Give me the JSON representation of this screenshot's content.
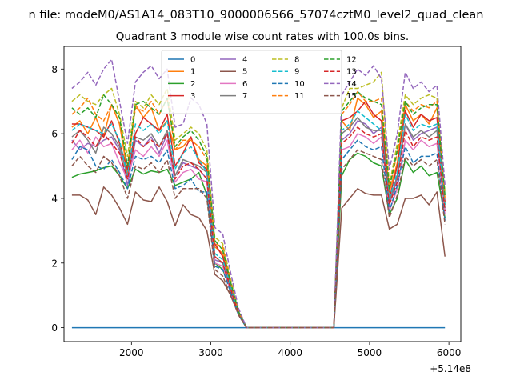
{
  "suptitle": "n file: modeM0/AS1A14_083T10_9000006566_57074cztM0_level2_quad_clean",
  "chart_data": {
    "type": "line",
    "title": "Quadrant 3 module wise count rates with 100.0s bins.",
    "xlabel": "",
    "ylabel": "",
    "x_offset_label": "+5.14e8",
    "xlim": [
      1150,
      6150
    ],
    "ylim": [
      -0.43,
      8.7
    ],
    "xticks": [
      2000,
      3000,
      4000,
      5000,
      6000
    ],
    "yticks": [
      0,
      2,
      4,
      6,
      8
    ],
    "grid": false,
    "legend_position": "top-center",
    "x": [
      1250,
      1350,
      1450,
      1550,
      1650,
      1750,
      1850,
      1950,
      2050,
      2150,
      2250,
      2350,
      2450,
      2550,
      2650,
      2750,
      2850,
      2950,
      3050,
      3150,
      3250,
      3350,
      3450,
      3550,
      3650,
      3750,
      3850,
      3950,
      4050,
      4150,
      4250,
      4350,
      4450,
      4550,
      4650,
      4750,
      4850,
      4950,
      5050,
      5150,
      5250,
      5350,
      5450,
      5550,
      5650,
      5750,
      5850,
      5950
    ],
    "series": [
      {
        "name": "0",
        "color": "#1f77b4",
        "dash": false,
        "values": [
          0,
          0,
          0,
          0,
          0,
          0,
          0,
          0,
          0,
          0,
          0,
          0,
          0,
          0,
          0,
          0,
          0,
          0,
          0,
          0,
          0,
          0,
          0,
          0,
          0,
          0,
          0,
          0,
          0,
          0,
          0,
          0,
          0,
          0,
          0,
          0,
          0,
          0,
          0,
          0,
          0,
          0,
          0,
          0,
          0,
          0,
          0,
          0
        ]
      },
      {
        "name": "1",
        "color": "#ff7f0e",
        "dash": false,
        "values": [
          6.2,
          6.4,
          6.0,
          6.5,
          5.9,
          6.9,
          6.3,
          4.8,
          6.9,
          6.5,
          6.8,
          6.1,
          6.4,
          5.5,
          5.6,
          5.9,
          5.2,
          5.0,
          2.5,
          2.3,
          1.4,
          0.5,
          0,
          0,
          0,
          0,
          0,
          0,
          0,
          0,
          0,
          0,
          0,
          0,
          6.4,
          6.1,
          7.1,
          6.9,
          6.5,
          6.7,
          4.2,
          5.1,
          6.9,
          6.4,
          6.6,
          6.3,
          6.8,
          3.8
        ]
      },
      {
        "name": "2",
        "color": "#2ca02c",
        "dash": false,
        "values": [
          4.65,
          4.75,
          4.8,
          4.85,
          4.95,
          5.0,
          4.7,
          4.3,
          4.9,
          4.75,
          4.85,
          4.8,
          4.9,
          4.4,
          4.5,
          4.6,
          4.8,
          4.1,
          2.0,
          1.8,
          1.2,
          0.4,
          0,
          0,
          0,
          0,
          0,
          0,
          0,
          0,
          0,
          0,
          0,
          0,
          4.7,
          5.2,
          5.4,
          5.3,
          5.1,
          5.0,
          3.5,
          4.0,
          5.2,
          4.8,
          5.0,
          4.7,
          4.8,
          3.4
        ]
      },
      {
        "name": "3",
        "color": "#d62728",
        "dash": false,
        "values": [
          6.3,
          6.3,
          6.2,
          6.1,
          5.9,
          6.4,
          5.7,
          4.9,
          6.0,
          6.5,
          6.3,
          6.1,
          6.6,
          5.0,
          5.4,
          5.9,
          5.1,
          4.9,
          2.6,
          2.2,
          1.3,
          0.5,
          0,
          0,
          0,
          0,
          0,
          0,
          0,
          0,
          0,
          0,
          0,
          0,
          6.4,
          6.5,
          6.7,
          7.0,
          6.6,
          6.4,
          4.0,
          5.0,
          6.7,
          6.2,
          6.6,
          6.4,
          6.5,
          3.9
        ]
      },
      {
        "name": "4",
        "color": "#9467bd",
        "dash": false,
        "values": [
          5.8,
          5.5,
          5.7,
          5.6,
          5.8,
          5.9,
          5.5,
          4.4,
          5.8,
          5.6,
          5.9,
          5.4,
          6.0,
          4.7,
          5.1,
          5.0,
          4.9,
          4.6,
          2.1,
          2.0,
          1.2,
          0.4,
          0,
          0,
          0,
          0,
          0,
          0,
          0,
          0,
          0,
          0,
          0,
          0,
          5.8,
          6.0,
          6.4,
          6.3,
          6.0,
          6.2,
          3.8,
          4.6,
          6.3,
          5.8,
          6.0,
          6.1,
          6.2,
          3.6
        ]
      },
      {
        "name": "5",
        "color": "#8c564b",
        "dash": false,
        "values": [
          4.1,
          4.1,
          3.95,
          3.5,
          4.35,
          4.1,
          3.7,
          3.2,
          4.2,
          3.95,
          3.9,
          4.35,
          3.9,
          3.15,
          3.8,
          3.5,
          3.4,
          3.0,
          1.65,
          1.45,
          1.0,
          0.4,
          0,
          0,
          0,
          0,
          0,
          0,
          0,
          0,
          0,
          0,
          0,
          0,
          3.7,
          4.0,
          4.3,
          4.15,
          4.1,
          4.1,
          3.05,
          3.2,
          4.0,
          4.0,
          4.1,
          3.8,
          4.2,
          2.2
        ]
      },
      {
        "name": "6",
        "color": "#e377c2",
        "dash": false,
        "values": [
          5.5,
          5.8,
          5.4,
          5.9,
          5.6,
          5.7,
          5.1,
          4.6,
          5.5,
          5.3,
          5.6,
          5.3,
          5.8,
          4.5,
          4.8,
          4.9,
          4.6,
          4.5,
          2.0,
          1.9,
          1.1,
          0.4,
          0,
          0,
          0,
          0,
          0,
          0,
          0,
          0,
          0,
          0,
          0,
          0,
          5.5,
          5.6,
          6.0,
          5.9,
          5.7,
          5.9,
          3.6,
          4.3,
          5.8,
          5.5,
          5.8,
          5.6,
          5.7,
          3.5
        ]
      },
      {
        "name": "7",
        "color": "#7f7f7f",
        "dash": false,
        "values": [
          5.9,
          6.1,
          5.8,
          5.4,
          6.2,
          6.0,
          5.6,
          4.7,
          5.9,
          5.8,
          6.0,
          5.6,
          6.1,
          4.7,
          5.2,
          5.1,
          5.0,
          4.8,
          2.2,
          2.0,
          1.2,
          0.4,
          0,
          0,
          0,
          0,
          0,
          0,
          0,
          0,
          0,
          0,
          0,
          0,
          6.0,
          6.2,
          6.5,
          6.2,
          6.1,
          6.1,
          3.9,
          4.7,
          6.3,
          5.9,
          6.1,
          5.9,
          6.1,
          3.7
        ]
      },
      {
        "name": "8",
        "color": "#bcbd22",
        "dash": true,
        "values": [
          7.0,
          7.2,
          7.0,
          6.9,
          7.2,
          7.4,
          6.6,
          5.3,
          7.0,
          6.8,
          7.2,
          6.9,
          7.4,
          5.8,
          6.0,
          6.2,
          6.0,
          5.5,
          2.8,
          2.6,
          1.5,
          0.5,
          0,
          0,
          0,
          0,
          0,
          0,
          0,
          0,
          0,
          0,
          0,
          0,
          6.8,
          7.4,
          7.4,
          7.5,
          7.6,
          7.9,
          4.4,
          5.7,
          7.2,
          6.9,
          7.1,
          7.2,
          7.1,
          4.2
        ]
      },
      {
        "name": "9",
        "color": "#17becf",
        "dash": true,
        "values": [
          6.1,
          6.3,
          6.2,
          6.1,
          6.0,
          6.3,
          5.8,
          4.7,
          6.3,
          6.1,
          6.3,
          6.0,
          6.4,
          4.9,
          5.4,
          5.6,
          5.2,
          4.8,
          2.3,
          2.1,
          1.3,
          0.4,
          0,
          0,
          0,
          0,
          0,
          0,
          0,
          0,
          0,
          0,
          0,
          0,
          6.1,
          6.3,
          6.7,
          6.5,
          6.3,
          6.1,
          4.0,
          4.8,
          6.6,
          6.1,
          6.3,
          6.2,
          6.3,
          3.8
        ]
      },
      {
        "name": "10",
        "color": "#1f77b4",
        "dash": true,
        "values": [
          5.2,
          5.6,
          5.5,
          5.0,
          4.9,
          5.2,
          4.8,
          4.3,
          5.3,
          5.2,
          5.3,
          5.1,
          5.5,
          4.3,
          4.4,
          4.6,
          4.2,
          4.2,
          1.9,
          1.8,
          1.1,
          0.4,
          0,
          0,
          0,
          0,
          0,
          0,
          0,
          0,
          0,
          0,
          0,
          0,
          5.2,
          5.5,
          5.8,
          5.6,
          5.5,
          5.6,
          3.6,
          4.4,
          5.6,
          5.1,
          5.3,
          5.3,
          5.4,
          3.3
        ]
      },
      {
        "name": "11",
        "color": "#ff7f0e",
        "dash": true,
        "values": [
          6.6,
          6.8,
          7.1,
          6.6,
          6.4,
          6.9,
          6.3,
          5.0,
          6.8,
          6.7,
          7.0,
          6.6,
          7.1,
          5.5,
          5.8,
          5.8,
          5.6,
          5.2,
          2.6,
          2.5,
          1.4,
          0.5,
          0,
          0,
          0,
          0,
          0,
          0,
          0,
          0,
          0,
          0,
          0,
          0,
          6.6,
          6.9,
          7.3,
          7.0,
          7.0,
          7.1,
          4.3,
          5.4,
          7.0,
          6.7,
          6.9,
          6.8,
          7.0,
          4.0
        ]
      },
      {
        "name": "12",
        "color": "#2ca02c",
        "dash": true,
        "values": [
          6.8,
          6.6,
          6.8,
          6.5,
          7.2,
          6.9,
          6.5,
          5.0,
          6.9,
          7.0,
          6.8,
          6.6,
          7.1,
          5.6,
          5.9,
          6.1,
          5.8,
          5.3,
          2.7,
          2.4,
          1.4,
          0.5,
          0,
          0,
          0,
          0,
          0,
          0,
          0,
          0,
          0,
          0,
          0,
          0,
          6.7,
          7.0,
          7.3,
          7.1,
          7.0,
          6.9,
          4.3,
          5.5,
          7.0,
          6.6,
          6.8,
          6.9,
          6.9,
          4.1
        ]
      },
      {
        "name": "13",
        "color": "#d62728",
        "dash": true,
        "values": [
          5.7,
          6.1,
          5.9,
          5.6,
          6.0,
          5.7,
          5.4,
          4.6,
          5.9,
          5.6,
          5.8,
          5.6,
          6.0,
          4.6,
          5.0,
          5.1,
          4.9,
          4.6,
          2.2,
          2.0,
          1.2,
          0.4,
          0,
          0,
          0,
          0,
          0,
          0,
          0,
          0,
          0,
          0,
          0,
          0,
          5.7,
          5.9,
          6.2,
          6.0,
          5.9,
          6.0,
          3.8,
          4.5,
          6.1,
          5.6,
          5.9,
          5.8,
          5.9,
          3.6
        ]
      },
      {
        "name": "14",
        "color": "#9467bd",
        "dash": true,
        "values": [
          7.4,
          7.6,
          7.9,
          7.5,
          8.0,
          8.3,
          7.0,
          5.7,
          7.6,
          7.9,
          8.1,
          7.7,
          8.0,
          6.2,
          6.3,
          7.1,
          6.9,
          6.3,
          3.1,
          2.9,
          1.7,
          0.6,
          0,
          0,
          0,
          0,
          0,
          0,
          0,
          0,
          0,
          0,
          0,
          0,
          7.2,
          7.6,
          8.0,
          7.8,
          8.1,
          7.7,
          4.9,
          6.0,
          7.9,
          7.4,
          7.6,
          7.3,
          7.5,
          4.4
        ]
      },
      {
        "name": "15",
        "color": "#8c564b",
        "dash": true,
        "values": [
          5.0,
          5.3,
          5.0,
          4.8,
          5.3,
          5.1,
          4.7,
          4.0,
          5.0,
          4.9,
          5.1,
          4.8,
          5.2,
          4.0,
          4.3,
          4.3,
          4.3,
          4.0,
          1.8,
          1.6,
          1.0,
          0.4,
          0,
          0,
          0,
          0,
          0,
          0,
          0,
          0,
          0,
          0,
          0,
          0,
          4.9,
          5.2,
          5.5,
          5.4,
          5.3,
          5.2,
          3.4,
          4.1,
          5.3,
          5.0,
          5.2,
          5.0,
          5.2,
          3.2
        ]
      }
    ]
  }
}
